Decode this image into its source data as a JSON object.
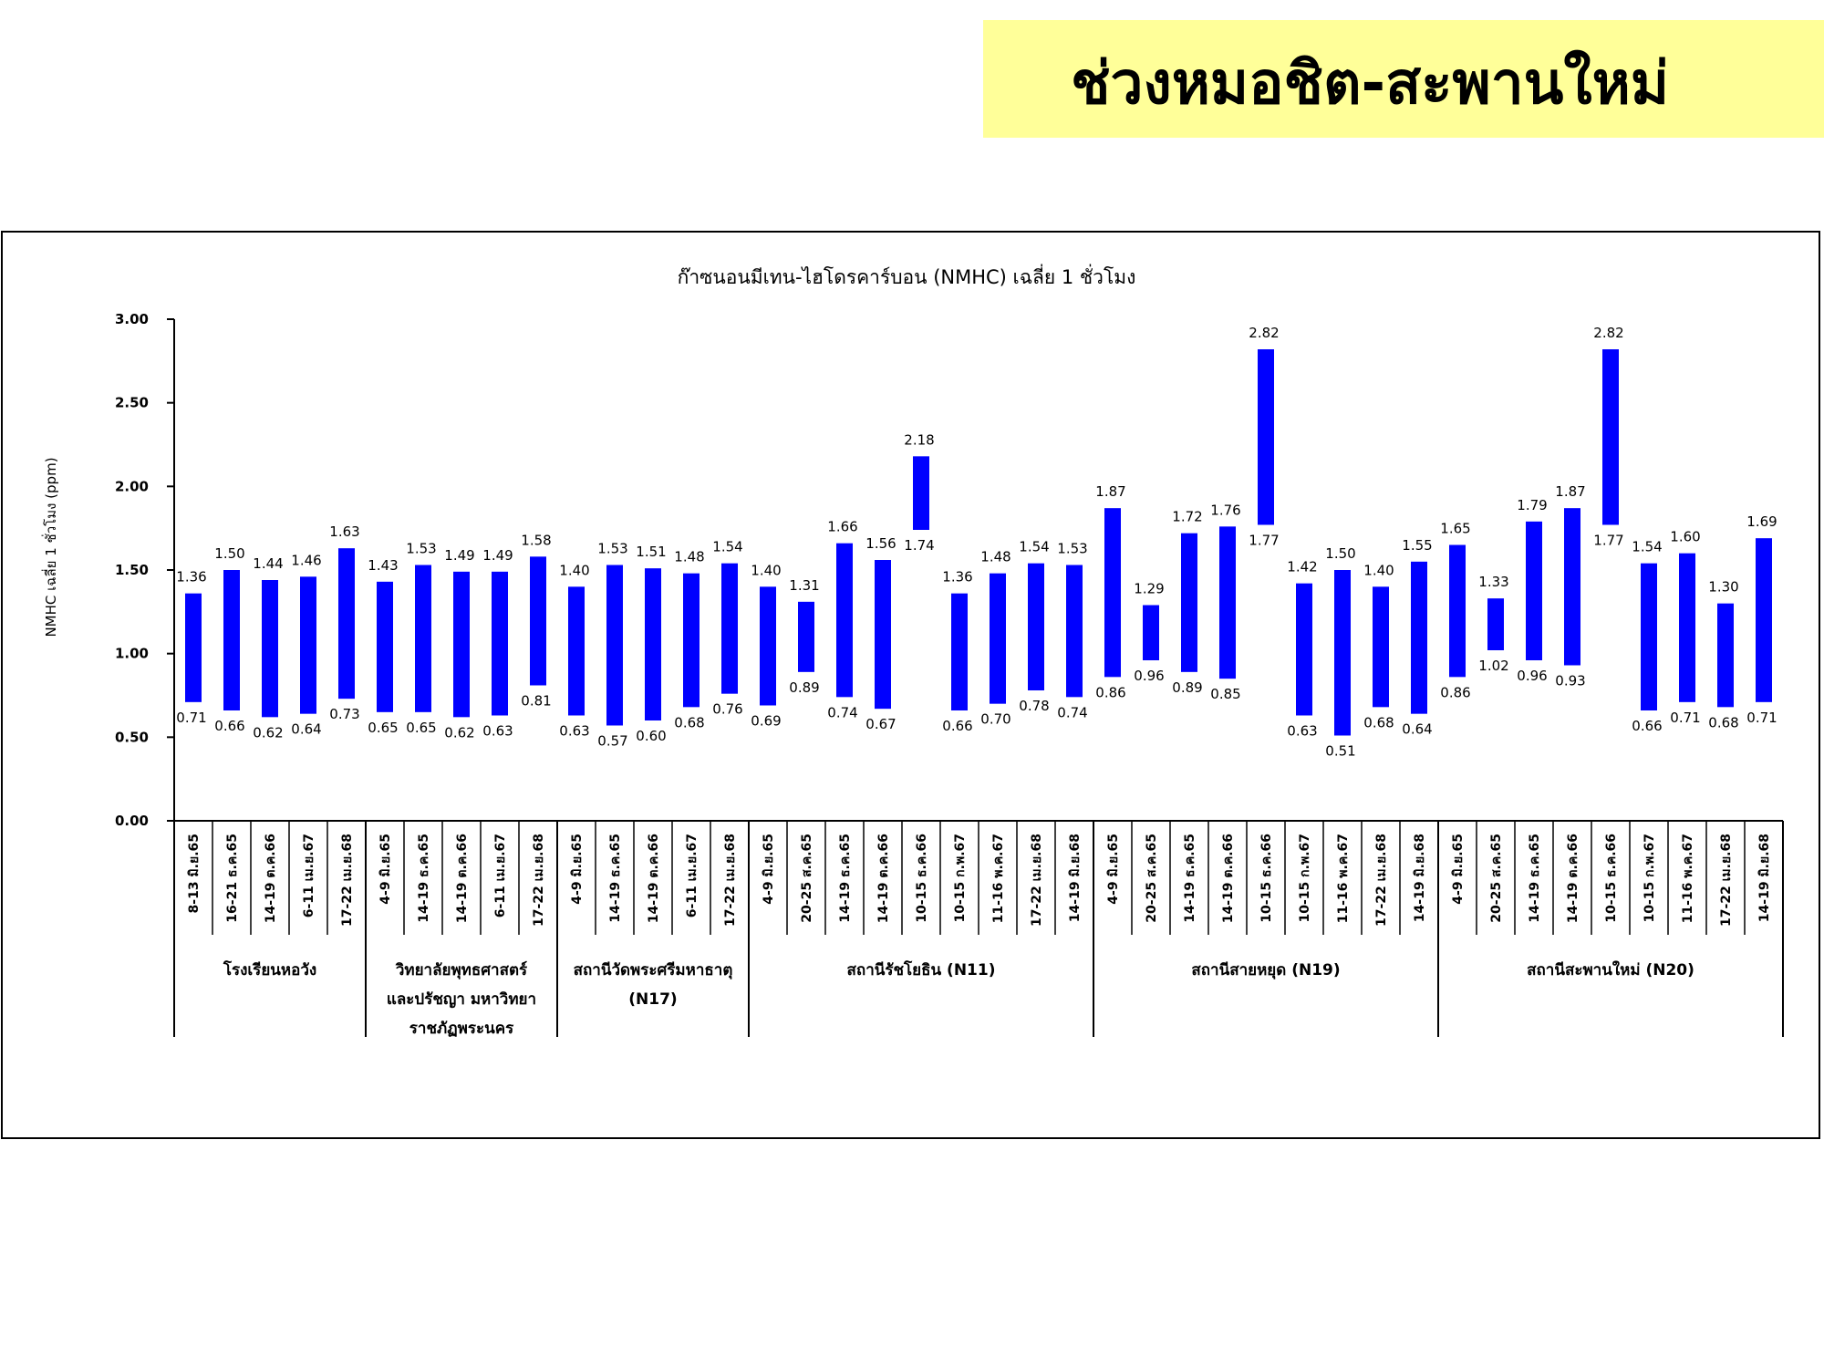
{
  "header": {
    "title": "ช่วงหมอชิต-สะพานใหม่"
  },
  "colors": {
    "bar": "#0000ff",
    "banner": "#ffff99"
  },
  "chart_data": {
    "type": "bar",
    "subtype": "floating-range",
    "title": "ก๊าซนอนมีเทน-ไฮโดรคาร์บอน (NMHC) เฉลี่ย 1 ชั่วโมง",
    "ylabel": "NMHC เฉลี่ย 1 ชั่วโมง (ppm)",
    "xlabel": "",
    "ylim": [
      0,
      3
    ],
    "yticks": [
      "0.00",
      "0.50",
      "1.00",
      "1.50",
      "2.00",
      "2.50",
      "3.00"
    ],
    "grid": false,
    "categories": [
      "8-13 มิ.ย.65",
      "16-21 ธ.ค.65",
      "14-19 ต.ค.66",
      "6-11 เม.ย.67",
      "17-22 เม.ย.68",
      "4-9 มิ.ย.65",
      "14-19 ธ.ค.65",
      "14-19 ต.ค.66",
      "6-11 เม.ย.67",
      "17-22 เม.ย.68",
      "4-9 มิ.ย.65",
      "14-19 ธ.ค.65",
      "14-19 ต.ค.66",
      "6-11 เม.ย.67",
      "17-22 เม.ย.68",
      "4-9 มิ.ย.65",
      "20-25 ส.ค.65",
      "14-19 ธ.ค.65",
      "14-19 ต.ค.66",
      "10-15 ธ.ค.66",
      "10-15 ก.พ.67",
      "11-16 พ.ค.67",
      "17-22 เม.ย.68",
      "14-19 มิ.ย.68",
      "4-9 มิ.ย.65",
      "20-25 ส.ค.65",
      "14-19 ธ.ค.65",
      "14-19 ต.ค.66",
      "10-15 ธ.ค.66",
      "10-15 ก.พ.67",
      "11-16 พ.ค.67",
      "17-22 เม.ย.68",
      "14-19 มิ.ย.68",
      "4-9 มิ.ย.65",
      "20-25 ส.ค.65",
      "14-19 ธ.ค.65",
      "14-19 ต.ค.66",
      "10-15 ธ.ค.66",
      "10-15 ก.พ.67",
      "11-16 พ.ค.67",
      "17-22 เม.ย.68",
      "14-19 มิ.ย.68"
    ],
    "high": [
      1.36,
      1.5,
      1.44,
      1.46,
      1.63,
      1.43,
      1.53,
      1.49,
      1.49,
      1.58,
      1.4,
      1.53,
      1.51,
      1.48,
      1.54,
      1.4,
      1.31,
      1.66,
      1.56,
      2.18,
      1.36,
      1.48,
      1.54,
      1.53,
      1.87,
      1.29,
      1.72,
      1.76,
      2.82,
      1.42,
      1.5,
      1.4,
      1.55,
      1.65,
      1.33,
      1.79,
      1.87,
      2.82,
      1.54,
      1.6,
      1.3,
      1.69
    ],
    "low": [
      0.71,
      0.66,
      0.62,
      0.64,
      0.73,
      0.65,
      0.65,
      0.62,
      0.63,
      0.81,
      0.63,
      0.57,
      0.6,
      0.68,
      0.76,
      0.69,
      0.89,
      0.74,
      0.67,
      1.74,
      0.66,
      0.7,
      0.78,
      0.74,
      0.86,
      0.96,
      0.89,
      0.85,
      1.77,
      0.63,
      0.51,
      0.68,
      0.64,
      0.86,
      1.02,
      0.96,
      0.93,
      1.77,
      0.66,
      0.71,
      0.68,
      0.71
    ],
    "high_labels": [
      "1.36",
      "1.50",
      "1.44",
      "1.46",
      "1.63",
      "1.43",
      "1.53",
      "1.49",
      "1.49",
      "1.58",
      "1.40",
      "1.53",
      "1.51",
      "1.48",
      "1.54",
      "1.40",
      "1.31",
      "1.66",
      "1.56",
      "2.18",
      "1.36",
      "1.48",
      "1.54",
      "1.53",
      "1.87",
      "1.29",
      "1.72",
      "1.76",
      "2.82",
      "1.42",
      "1.50",
      "1.40",
      "1.55",
      "1.65",
      "1.33",
      "1.79",
      "1.87",
      "2.82",
      "1.54",
      "1.60",
      "1.30",
      "1.69"
    ],
    "low_labels": [
      "0.71",
      "0.66",
      "0.62",
      "0.64",
      "0.73",
      "0.65",
      "0.65",
      "0.62",
      "0.63",
      "0.81",
      "0.63",
      "0.57",
      "0.60",
      "0.68",
      "0.76",
      "0.69",
      "0.89",
      "0.74",
      "0.67",
      "1.74",
      "0.66",
      "0.70",
      "0.78",
      "0.74",
      "0.86",
      "0.96",
      "0.89",
      "0.85",
      "1.77",
      "0.63",
      "0.51",
      "0.68",
      "0.64",
      "0.86",
      "1.02",
      "0.96",
      "0.93",
      "1.77",
      "0.66",
      "0.71",
      "0.68",
      "0.71"
    ],
    "groups": [
      {
        "lines": [
          "โรงเรียนหอวัง"
        ],
        "count": 5
      },
      {
        "lines": [
          "วิทยาลัยพุทธศาสตร์",
          "และปรัชญา มหาวิทยา",
          "ราชภัฏพระนคร"
        ],
        "count": 5
      },
      {
        "lines": [
          "สถานีวัดพระศรีมหาธาตุ",
          "(N17)"
        ],
        "count": 5
      },
      {
        "lines": [
          "สถานีรัชโยธิน (N11)"
        ],
        "count": 9
      },
      {
        "lines": [
          "สถานีสายหยุด (N19)"
        ],
        "count": 9
      },
      {
        "lines": [
          "สถานีสะพานใหม่ (N20)"
        ],
        "count": 9
      }
    ]
  }
}
